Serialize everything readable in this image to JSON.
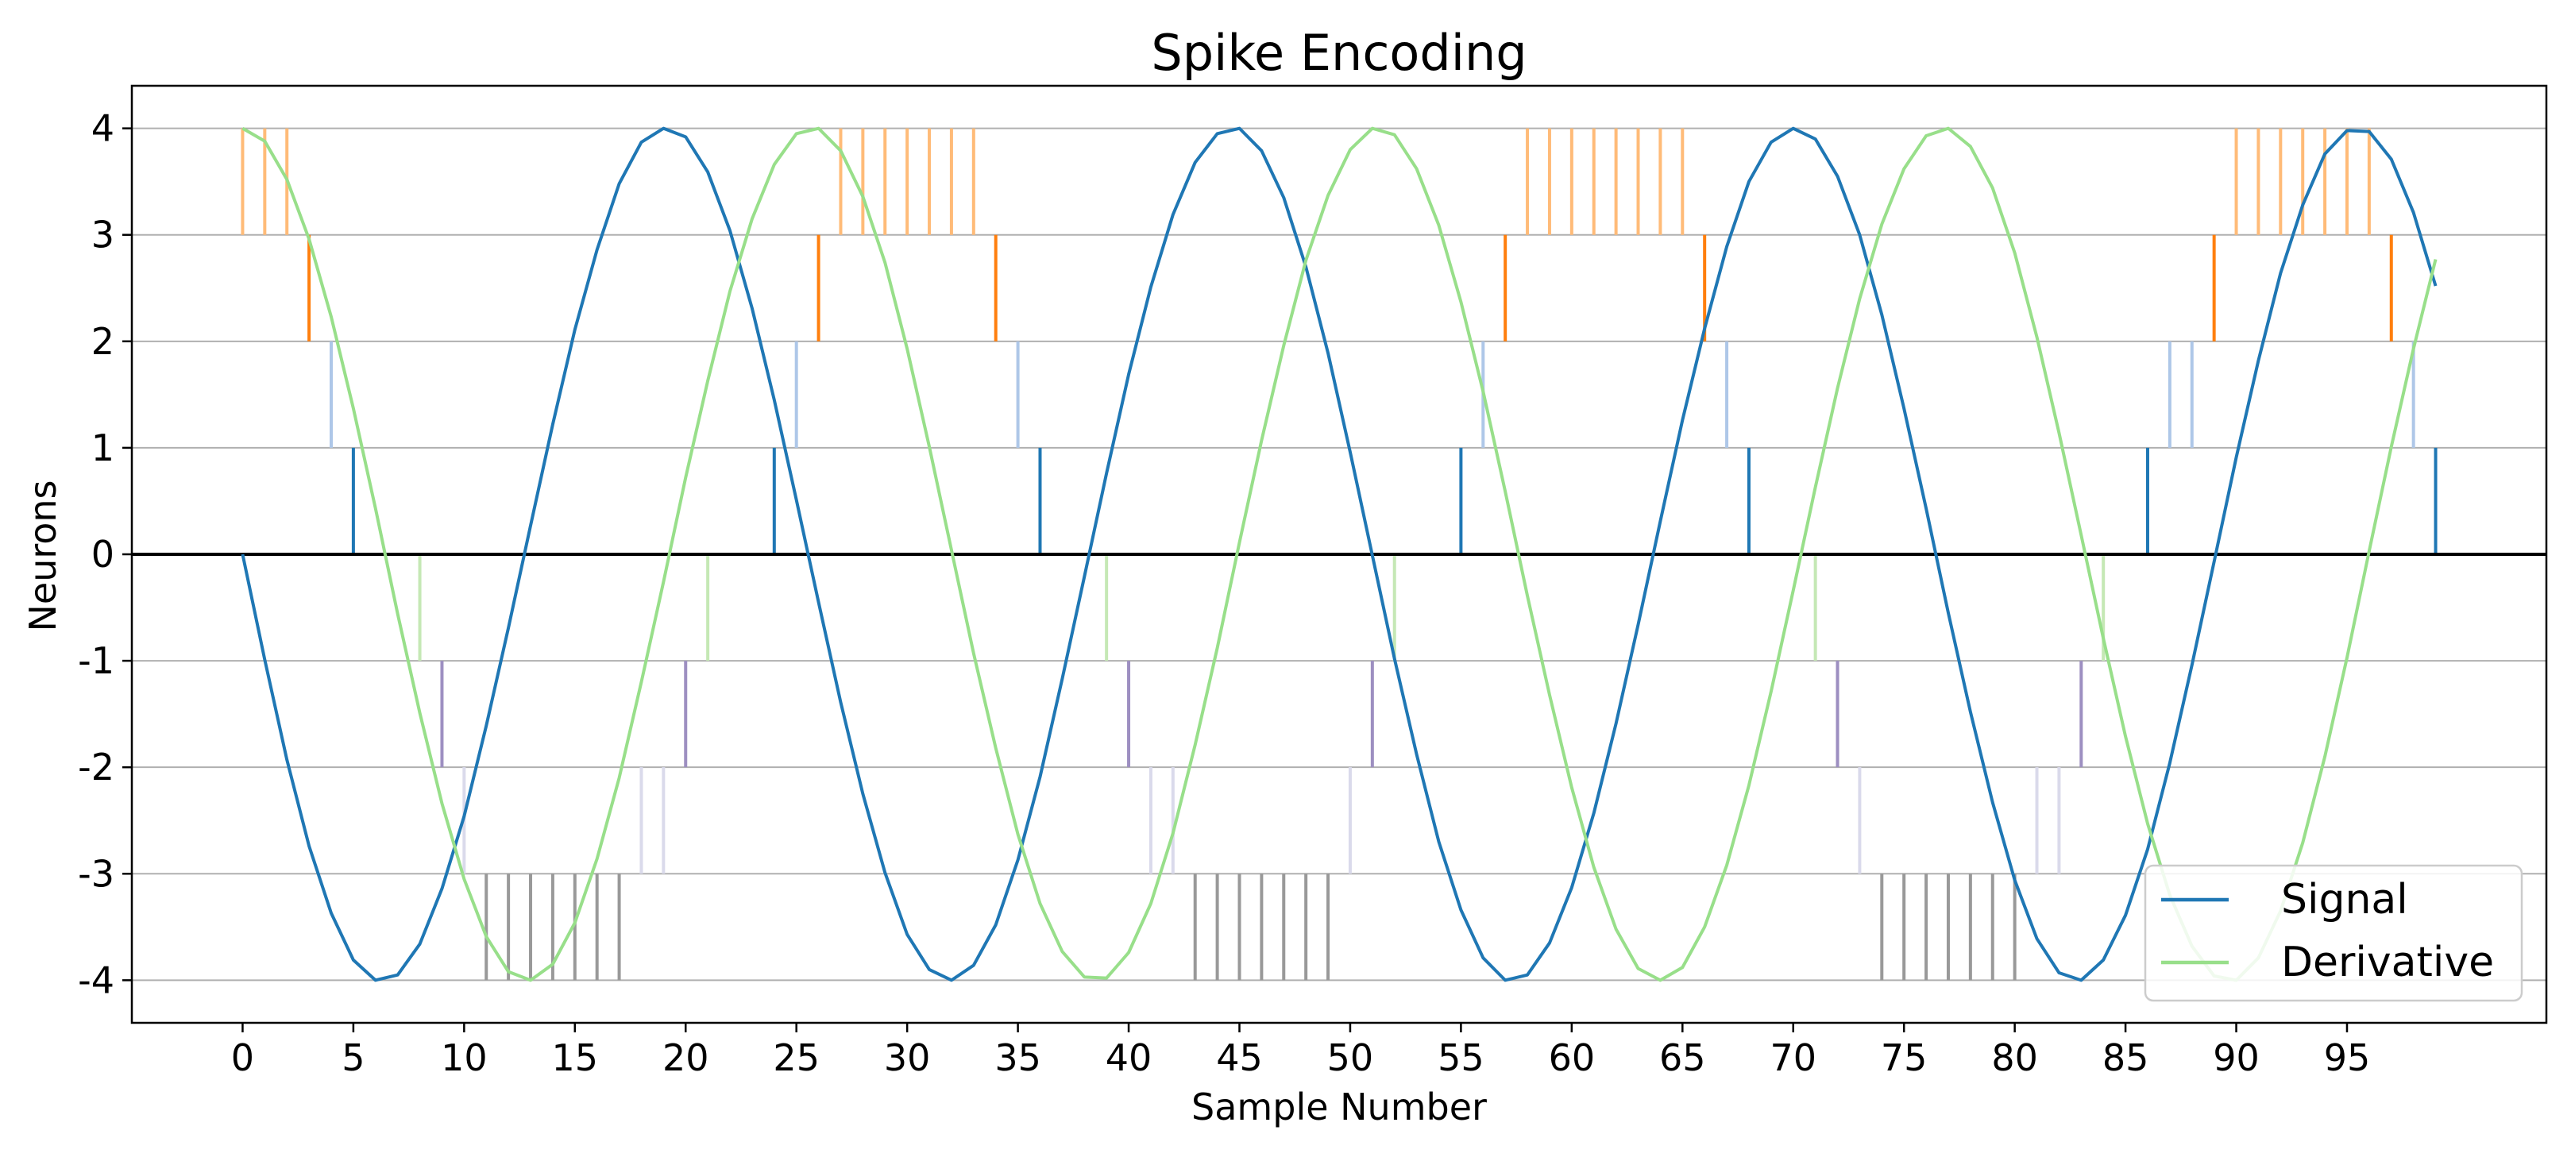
{
  "chart_data": {
    "type": "line",
    "title": "Spike Encoding",
    "xlabel": "Sample Number",
    "ylabel": "Neurons",
    "xlim": [
      -5,
      104
    ],
    "ylim": [
      -4.4,
      4.4
    ],
    "xticks": [
      0,
      5,
      10,
      15,
      20,
      25,
      30,
      35,
      40,
      45,
      50,
      55,
      60,
      65,
      70,
      75,
      80,
      85,
      90,
      95
    ],
    "yticks": [
      -4,
      -3,
      -2,
      -1,
      0,
      1,
      2,
      3,
      4
    ],
    "ytick_labels": [
      "-4",
      "-3",
      "-2",
      "-1",
      "0",
      "1",
      "2",
      "3",
      "4"
    ],
    "grid": "horizontal",
    "legend": "bottom-right",
    "series": [
      {
        "name": "Signal",
        "color": "#1f77b4",
        "samples": 100,
        "y": [
          0.0,
          -0.99,
          -1.93,
          -2.74,
          -3.37,
          -3.81,
          -4.0,
          -3.95,
          -3.66,
          -3.14,
          -2.46,
          -1.61,
          -0.69,
          0.27,
          1.22,
          2.11,
          2.86,
          3.48,
          3.87,
          4.0,
          3.92,
          3.59,
          3.04,
          2.31,
          1.45,
          0.51,
          -0.45,
          -1.39,
          -2.25,
          -2.99,
          -3.57,
          -3.9,
          -4.0,
          -3.86,
          -3.48,
          -2.87,
          -2.09,
          -1.17,
          -0.21,
          0.76,
          1.69,
          2.51,
          3.19,
          3.68,
          3.95,
          4.0,
          3.79,
          3.35,
          2.7,
          1.89,
          0.96,
          -0.01,
          -0.98,
          -1.88,
          -2.7,
          -3.34,
          -3.79,
          -4.0,
          -3.95,
          -3.65,
          -3.13,
          -2.43,
          -1.59,
          -0.66,
          0.31,
          1.26,
          2.12,
          2.89,
          3.5,
          3.87,
          4.0,
          3.9,
          3.55,
          3.0,
          2.25,
          1.37,
          0.43,
          -0.55,
          -1.48,
          -2.33,
          -3.06,
          -3.61,
          -3.93,
          -4.0,
          -3.81,
          -3.39,
          -2.77,
          -1.96,
          -1.04,
          -0.07,
          0.91,
          1.82,
          2.64,
          3.28,
          3.76,
          3.98,
          3.97,
          3.71,
          3.21,
          2.52
        ]
      },
      {
        "name": "Derivative",
        "color": "#98df8a",
        "samples": 100,
        "y": [
          4.0,
          3.88,
          3.52,
          2.96,
          2.23,
          1.37,
          0.43,
          -0.56,
          -1.49,
          -2.34,
          -3.05,
          -3.59,
          -3.92,
          -4.0,
          -3.85,
          -3.46,
          -2.86,
          -2.1,
          -1.2,
          -0.26,
          0.72,
          1.63,
          2.47,
          3.15,
          3.66,
          3.95,
          4.0,
          3.79,
          3.36,
          2.74,
          1.93,
          1.01,
          0.04,
          -0.93,
          -1.82,
          -2.63,
          -3.28,
          -3.73,
          -3.97,
          -3.98,
          -3.74,
          -3.28,
          -2.62,
          -1.79,
          -0.88,
          0.11,
          1.07,
          1.96,
          2.76,
          3.37,
          3.8,
          4.0,
          3.94,
          3.62,
          3.09,
          2.37,
          1.53,
          0.59,
          -0.39,
          -1.32,
          -2.19,
          -2.94,
          -3.52,
          -3.89,
          -4.0,
          -3.88,
          -3.5,
          -2.92,
          -2.17,
          -1.29,
          -0.34,
          0.63,
          1.56,
          2.4,
          3.1,
          3.62,
          3.93,
          4.0,
          3.83,
          3.44,
          2.83,
          2.04,
          1.14,
          0.18,
          -0.79,
          -1.71,
          -2.53,
          -3.2,
          -3.68,
          -3.96,
          -4.0,
          -3.79,
          -3.35,
          -2.71,
          -1.9,
          -0.97,
          0.03,
          1.01,
          1.93,
          2.77
        ]
      }
    ],
    "spike_rows": [
      {
        "row": 3,
        "color": "#ffbb78",
        "x": [
          0,
          1,
          2,
          27,
          28,
          29,
          30,
          31,
          32,
          33,
          58,
          59,
          60,
          61,
          62,
          63,
          64,
          65,
          90,
          91,
          92,
          93,
          94,
          95,
          96
        ]
      },
      {
        "row": 2,
        "color": "#ff7f0e",
        "x": [
          3,
          26,
          34,
          57,
          66,
          89,
          97
        ]
      },
      {
        "row": 1,
        "color": "#aec7e8",
        "x": [
          4,
          25,
          35,
          56,
          67,
          87,
          88,
          98
        ]
      },
      {
        "row": 0,
        "color": "#1f77b4",
        "x": [
          5,
          24,
          36,
          55,
          68,
          86,
          99
        ]
      },
      {
        "row": -1,
        "color": "#c5e8b5",
        "x": [
          8,
          21,
          39,
          52,
          71,
          84
        ]
      },
      {
        "row": -2,
        "color": "#9d8fc1",
        "x": [
          9,
          20,
          40,
          51,
          72,
          83
        ]
      },
      {
        "row": -3,
        "color": "#dadaeb",
        "x": [
          10,
          18,
          19,
          41,
          42,
          50,
          73,
          81,
          82
        ]
      },
      {
        "row": -4,
        "color": "#999999",
        "x": [
          11,
          12,
          13,
          14,
          15,
          16,
          17,
          43,
          44,
          45,
          46,
          47,
          48,
          49,
          74,
          75,
          76,
          77,
          78,
          79,
          80
        ]
      }
    ]
  }
}
